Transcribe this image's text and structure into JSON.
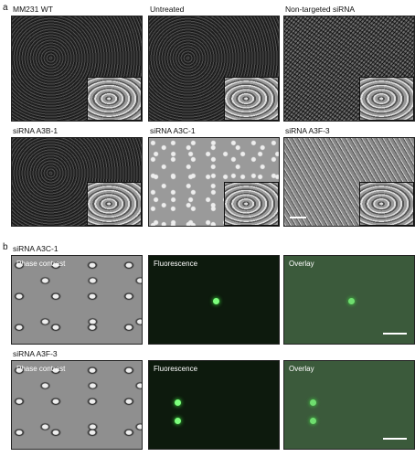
{
  "panel_a": {
    "label": "a",
    "images": [
      "MM231 WT",
      "Untreated",
      "Non-targeted siRNA",
      "siRNA A3B-1",
      "siRNA A3C-1",
      "siRNA A3F-3"
    ]
  },
  "panel_b": {
    "label": "b",
    "rows": [
      {
        "label": "siRNA A3C-1",
        "images": [
          "Phase contrast",
          "Fluorescence",
          "Overlay"
        ]
      },
      {
        "label": "siRNA A3F-3",
        "images": [
          "Phase contrast",
          "Fluorescence",
          "Overlay"
        ]
      }
    ]
  }
}
